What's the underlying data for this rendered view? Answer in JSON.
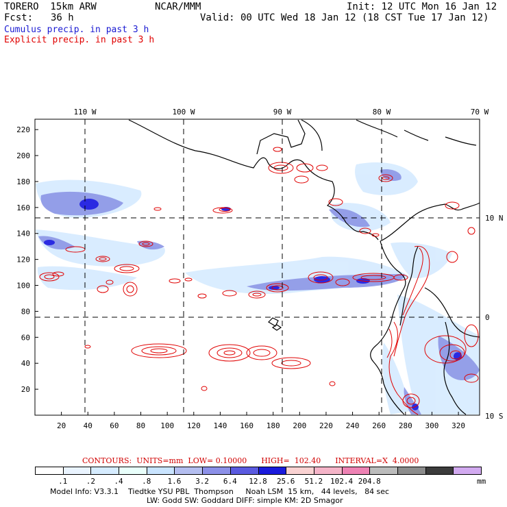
{
  "header": {
    "model": "TORERO  15km ARW",
    "org": "NCAR/MMM",
    "init": "Init: 12 UTC Mon 16 Jan 12",
    "fcst_label": "Fcst:",
    "fcst_hours": "36 h",
    "valid": "Valid: 00 UTC Wed 18 Jan 12 (18 CST Tue 17 Jan 12)"
  },
  "legend": {
    "cumulus": "Cumulus precip. in past 3 h",
    "explicit": "Explicit precip. in past 3 h"
  },
  "map": {
    "top_lon_labels": [
      "110 W",
      "100 W",
      "90 W",
      "80 W",
      "70 W"
    ],
    "right_lat_labels": [
      "10 N",
      "0",
      "10 S"
    ],
    "left_y_ticks": [
      "220",
      "200",
      "180",
      "160",
      "140",
      "120",
      "100",
      "80",
      "60",
      "40",
      "20"
    ],
    "bottom_x_ticks": [
      "20",
      "40",
      "60",
      "80",
      "100",
      "120",
      "140",
      "160",
      "180",
      "200",
      "220",
      "240",
      "260",
      "280",
      "300",
      "320"
    ],
    "grid_x_range": [
      0,
      336
    ],
    "grid_y_range": [
      0,
      228
    ],
    "colors": {
      "cumulus_light": "#d8ecff",
      "cumulus_mid": "#8c96e6",
      "cumulus_dark": "#2020e0",
      "explicit_contour": "#e00000",
      "land_outline": "#000000"
    }
  },
  "contours": {
    "text": "CONTOURS:  UNITS=mm  LOW= 0.10000      HIGH=  102.40      INTERVAL=X  4.0000"
  },
  "colorbar": {
    "colors": [
      "#ffffff",
      "#eaf4ff",
      "#d6ecff",
      "#e9fffb",
      "#c9e4ff",
      "#b4bef0",
      "#8c90e8",
      "#5a5ae0",
      "#1a1adc",
      "#fad2d2",
      "#f5b4c8",
      "#ee82b4",
      "#bcbcbc",
      "#8c8c8c",
      "#3c3c3c",
      "#d2aaf0"
    ],
    "labels": [
      ".1",
      ".2",
      ".4",
      ".8",
      "1.6",
      "3.2",
      "6.4",
      "12.8",
      "25.6",
      "51.2",
      "102.4",
      "204.8"
    ],
    "unit": "mm"
  },
  "footer": {
    "line1": "Model Info: V3.3.1    Tiedtke YSU PBL  Thompson     Noah LSM  15 km,   44 levels,   84 sec",
    "line2": "LW: Godd SW: Goddard DIFF: simple KM: 2D Smagor"
  }
}
